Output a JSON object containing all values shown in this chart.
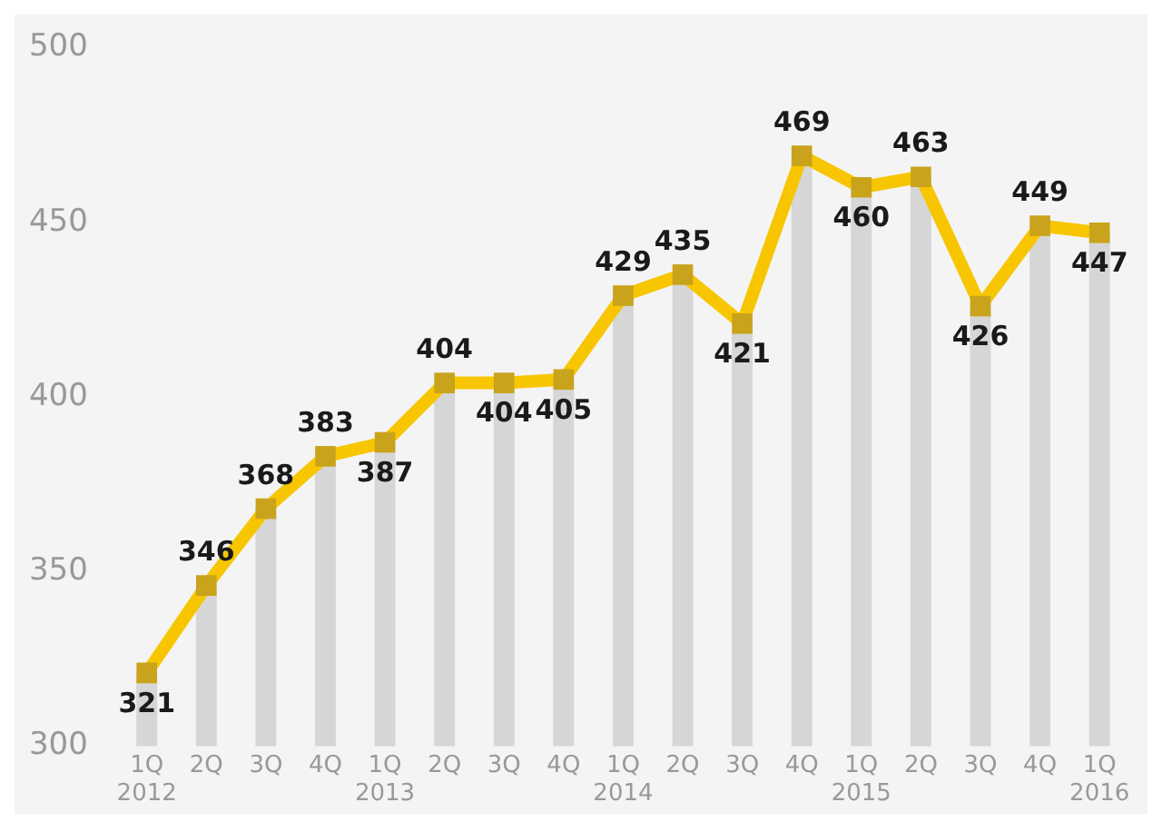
{
  "chart_data": {
    "type": "line",
    "categories": [
      "1Q\n2012",
      "2Q",
      "3Q",
      "4Q",
      "1Q\n2013",
      "2Q",
      "3Q",
      "4Q",
      "1Q\n2014",
      "2Q",
      "3Q",
      "4Q",
      "1Q\n2015",
      "2Q",
      "3Q",
      "4Q",
      "1Q\n2016"
    ],
    "series": [
      {
        "type": "bar",
        "color": "#d6d6d6",
        "values": [
          321,
          346,
          368,
          383,
          387,
          404,
          404,
          405,
          429,
          435,
          421,
          469,
          460,
          463,
          426,
          449,
          447
        ]
      },
      {
        "color": "#f7c600",
        "values": [
          321,
          346,
          368,
          383,
          387,
          404,
          404,
          405,
          429,
          435,
          421,
          469,
          460,
          463,
          426,
          449,
          447
        ],
        "value_labels": [
          "321",
          "346",
          "368",
          "383",
          "387",
          "404",
          "404",
          "405",
          "429",
          "435",
          "421",
          "469",
          "460",
          "463",
          "426",
          "449",
          "447"
        ]
      }
    ],
    "ylim": [
      300,
      500
    ],
    "yticks": [
      300,
      350,
      400,
      450,
      500
    ],
    "grid": false,
    "legend": false,
    "marker": "square",
    "line_style": "solid"
  }
}
